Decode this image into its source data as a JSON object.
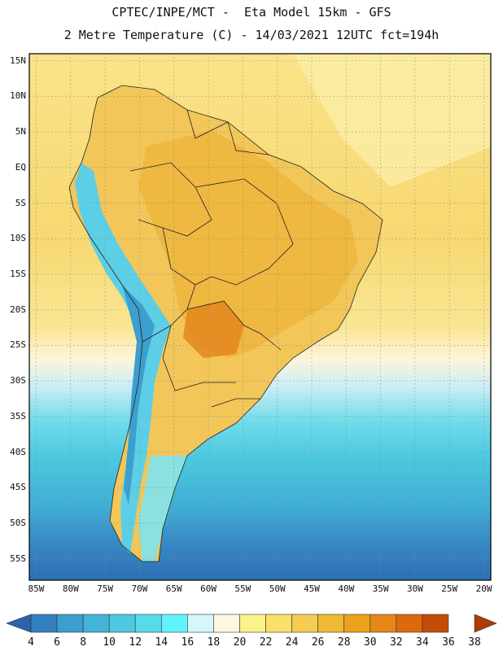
{
  "header": {
    "line1": "CPTEC/INPE/MCT -  Eta Model 15km - GFS",
    "line2": "2 Metre Temperature (C) - 14/03/2021 12UTC fct=194h"
  },
  "map": {
    "lat_labels": [
      "15N",
      "10N",
      "5N",
      "EQ",
      "5S",
      "10S",
      "15S",
      "20S",
      "25S",
      "30S",
      "35S",
      "40S",
      "45S",
      "50S",
      "55S"
    ],
    "lon_labels": [
      "85W",
      "80W",
      "75W",
      "70W",
      "65W",
      "60W",
      "55W",
      "50W",
      "45W",
      "40W",
      "35W",
      "30W",
      "25W",
      "20W"
    ],
    "extent": {
      "lon": [
        -86,
        -19
      ],
      "lat": [
        -58,
        16
      ]
    }
  },
  "colorbar": {
    "ticks": [
      "4",
      "6",
      "8",
      "10",
      "12",
      "14",
      "16",
      "18",
      "20",
      "22",
      "24",
      "26",
      "28",
      "30",
      "32",
      "34",
      "36",
      "38"
    ],
    "colors": [
      "#2b63ad",
      "#3380c0",
      "#3b9fcf",
      "#44b3d8",
      "#4ec7e0",
      "#56dbea",
      "#62f2fa",
      "#d5f6fb",
      "#fdf7e1",
      "#fbf28a",
      "#f9e06a",
      "#f4cd52",
      "#efb935",
      "#eba11c",
      "#e58618",
      "#db6a0c",
      "#c54c06",
      "#b03a04"
    ]
  }
}
